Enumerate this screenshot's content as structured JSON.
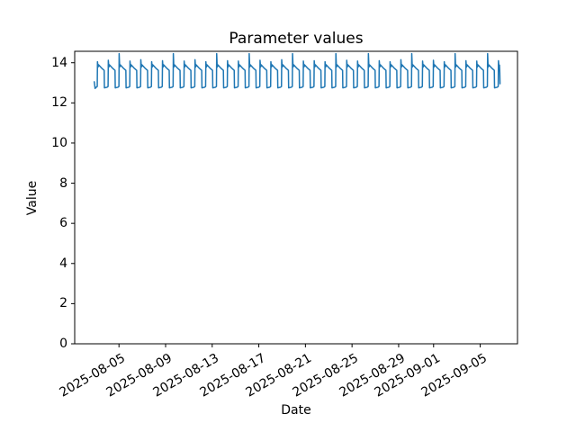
{
  "figure": {
    "background": "#ffffff",
    "text_color": "#000000"
  },
  "chart_data": {
    "type": "line",
    "title": "Parameter values",
    "xlabel": "Date",
    "ylabel": "Value",
    "grid": false,
    "legend": null,
    "line_color": "#1f77b4",
    "line_width": 1.5,
    "x_unit": "days since 2025-08-01 00:00",
    "xlim": [
      0.2,
      38.2
    ],
    "ylim": [
      0,
      14.57
    ],
    "y_ticks": [
      0,
      2,
      4,
      6,
      8,
      10,
      12,
      14
    ],
    "x_ticks": [
      {
        "day": 4,
        "label": "2025-08-05"
      },
      {
        "day": 8,
        "label": "2025-08-09"
      },
      {
        "day": 12,
        "label": "2025-08-13"
      },
      {
        "day": 16,
        "label": "2025-08-17"
      },
      {
        "day": 20,
        "label": "2025-08-21"
      },
      {
        "day": 24,
        "label": "2025-08-25"
      },
      {
        "day": 28,
        "label": "2025-08-29"
      },
      {
        "day": 31,
        "label": "2025-09-01"
      },
      {
        "day": 35,
        "label": "2025-09-05"
      }
    ],
    "series": [
      {
        "name": "parameter",
        "color": "#1f77b4",
        "value_range": [
          12.7,
          14.45
        ],
        "lead_in": [
          [
            1.88,
            13.05
          ],
          [
            1.95,
            12.72
          ]
        ],
        "cycle_start": 2.05,
        "period_days": 0.93,
        "num_cycles": 37,
        "cycle_shape": [
          [
            0.0,
            12.78
          ],
          [
            0.085,
            12.82
          ],
          [
            0.105,
            "peak"
          ],
          [
            0.15,
            13.78
          ],
          [
            0.2,
            13.9
          ],
          [
            0.45,
            13.74
          ],
          [
            0.68,
            13.62
          ],
          [
            0.7,
            12.75
          ]
        ],
        "peaks": [
          14.05,
          14.12,
          14.45,
          14.08,
          14.15,
          14.05,
          14.1,
          14.45,
          14.08,
          14.15,
          14.05,
          14.45,
          14.1,
          14.08,
          14.45,
          14.12,
          14.05,
          14.15,
          14.45,
          14.08,
          14.1,
          14.05,
          14.45,
          14.12,
          14.08,
          14.45,
          14.1,
          14.05,
          14.15,
          14.45,
          14.08,
          14.12,
          14.05,
          14.45,
          14.1,
          14.08,
          14.45
        ],
        "tail": [
          [
            36.46,
            12.78
          ],
          [
            36.545,
            12.82
          ],
          [
            36.565,
            14.1
          ],
          [
            36.61,
            13.78
          ],
          [
            36.655,
            13.88
          ],
          [
            36.68,
            13.5
          ],
          [
            36.7,
            12.95
          ]
        ]
      }
    ]
  }
}
